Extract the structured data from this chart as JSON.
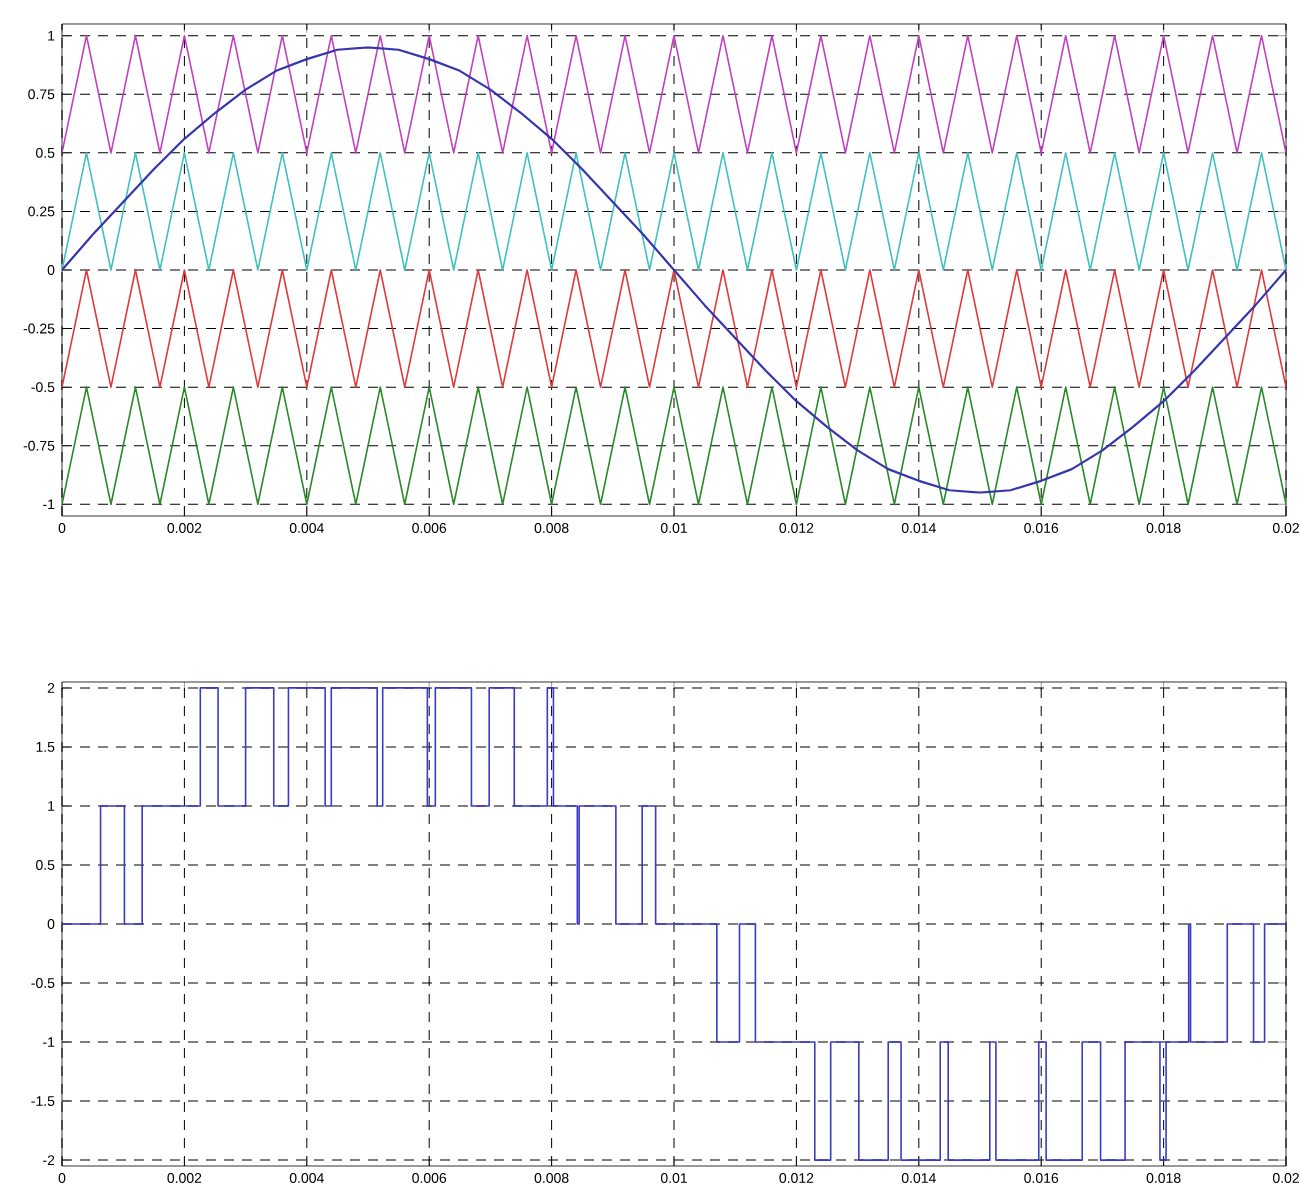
{
  "chart_data": [
    {
      "type": "line",
      "x": [
        0,
        0.0004,
        0.0008,
        0.0012,
        0.0016,
        0.002,
        0.0024,
        0.0028,
        0.0032,
        0.0036,
        0.004,
        0.0044,
        0.0048,
        0.0052,
        0.0056,
        0.006,
        0.0064,
        0.0068,
        0.0072,
        0.0076,
        0.008,
        0.0084,
        0.0088,
        0.0092,
        0.0096,
        0.01,
        0.0104,
        0.0108,
        0.0112,
        0.0116,
        0.012,
        0.0124,
        0.0128,
        0.0132,
        0.0136,
        0.014,
        0.0144,
        0.0148,
        0.0152,
        0.0156,
        0.016,
        0.0164,
        0.0168,
        0.0172,
        0.0176,
        0.018,
        0.0184,
        0.0188,
        0.0192,
        0.0196,
        0.02
      ],
      "series": [
        {
          "color": "#c040c0",
          "values": [
            0.5,
            1,
            0.5,
            1,
            0.5,
            1,
            0.5,
            1,
            0.5,
            1,
            0.5,
            1,
            0.5,
            1,
            0.5,
            1,
            0.5,
            1,
            0.5,
            1,
            0.5,
            1,
            0.5,
            1,
            0.5,
            1,
            0.5,
            1,
            0.5,
            1,
            0.5,
            1,
            0.5,
            1,
            0.5,
            1,
            0.5,
            1,
            0.5,
            1,
            0.5,
            1,
            0.5,
            1,
            0.5,
            1,
            0.5,
            1,
            0.5,
            1,
            0.5
          ]
        },
        {
          "color": "#40c0c0",
          "values": [
            0,
            0.5,
            0,
            0.5,
            0,
            0.5,
            0,
            0.5,
            0,
            0.5,
            0,
            0.5,
            0,
            0.5,
            0,
            0.5,
            0,
            0.5,
            0,
            0.5,
            0,
            0.5,
            0,
            0.5,
            0,
            0.5,
            0,
            0.5,
            0,
            0.5,
            0,
            0.5,
            0,
            0.5,
            0,
            0.5,
            0,
            0.5,
            0,
            0.5,
            0,
            0.5,
            0,
            0.5,
            0,
            0.5,
            0,
            0.5,
            0,
            0.5,
            0
          ]
        },
        {
          "color": "#e03a3a",
          "values": [
            -0.5,
            0,
            -0.5,
            0,
            -0.5,
            0,
            -0.5,
            0,
            -0.5,
            0,
            -0.5,
            0,
            -0.5,
            0,
            -0.5,
            0,
            -0.5,
            0,
            -0.5,
            0,
            -0.5,
            0,
            -0.5,
            0,
            -0.5,
            0,
            -0.5,
            0,
            -0.5,
            0,
            -0.5,
            0,
            -0.5,
            0,
            -0.5,
            0,
            -0.5,
            0,
            -0.5,
            0,
            -0.5,
            0,
            -0.5,
            0,
            -0.5,
            0,
            -0.5,
            0,
            -0.5,
            0,
            -0.5
          ]
        },
        {
          "color": "#2a8a2a",
          "values": [
            -1,
            -0.5,
            -1,
            -0.5,
            -1,
            -0.5,
            -1,
            -0.5,
            -1,
            -0.5,
            -1,
            -0.5,
            -1,
            -0.5,
            -1,
            -0.5,
            -1,
            -0.5,
            -1,
            -0.5,
            -1,
            -0.5,
            -1,
            -0.5,
            -1,
            -0.5,
            -1,
            -0.5,
            -1,
            -0.5,
            -1,
            -0.5,
            -1,
            -0.5,
            -1,
            -0.5,
            -1,
            -0.5,
            -1,
            -0.5,
            -1,
            -0.5,
            -1,
            -0.5,
            -1,
            -0.5,
            -1,
            -0.5,
            -1,
            -0.5,
            -1
          ]
        },
        {
          "color": "#3535b0",
          "x": [
            0,
            0.0005,
            0.001,
            0.0015,
            0.002,
            0.0025,
            0.003,
            0.0035,
            0.004,
            0.0045,
            0.005,
            0.0055,
            0.006,
            0.0065,
            0.007,
            0.0075,
            0.008,
            0.0085,
            0.009,
            0.0095,
            0.01,
            0.0105,
            0.011,
            0.0115,
            0.012,
            0.0125,
            0.013,
            0.0135,
            0.014,
            0.0145,
            0.015,
            0.0155,
            0.016,
            0.0165,
            0.017,
            0.0175,
            0.018,
            0.0185,
            0.019,
            0.0195,
            0.02
          ],
          "values": [
            0,
            0.15,
            0.29,
            0.43,
            0.56,
            0.67,
            0.77,
            0.85,
            0.9,
            0.94,
            0.95,
            0.94,
            0.9,
            0.85,
            0.77,
            0.67,
            0.56,
            0.43,
            0.29,
            0.15,
            0,
            -0.15,
            -0.29,
            -0.43,
            -0.56,
            -0.67,
            -0.77,
            -0.85,
            -0.9,
            -0.94,
            -0.95,
            -0.94,
            -0.9,
            -0.85,
            -0.77,
            -0.67,
            -0.56,
            -0.43,
            -0.29,
            -0.15,
            0
          ]
        }
      ],
      "xlim": [
        0,
        0.02
      ],
      "ylim": [
        -1.05,
        1.05
      ],
      "xticks": [
        0,
        0.002,
        0.004,
        0.006,
        0.008,
        0.01,
        0.012,
        0.014,
        0.016,
        0.018,
        0.02
      ],
      "yticks": [
        -1,
        -0.75,
        -0.5,
        -0.25,
        0,
        0.25,
        0.5,
        0.75,
        1
      ],
      "grid": true
    },
    {
      "type": "step",
      "series": [
        {
          "color": "#3a3ac8",
          "x": [
            0,
            0.00063,
            0.00102,
            0.00131,
            0.00226,
            0.00255,
            0.003,
            0.00346,
            0.0037,
            0.0043,
            0.0044,
            0.00515,
            0.00524,
            0.00597,
            0.0061,
            0.00669,
            0.00698,
            0.00739,
            0.00793,
            0.00803,
            0.00842,
            0.00845,
            0.00905,
            0.00948,
            0.0097,
            0.0107,
            0.01107,
            0.01133,
            0.0123,
            0.01256,
            0.01302,
            0.0135,
            0.01371,
            0.01435,
            0.01448,
            0.01516,
            0.01526,
            0.01596,
            0.01608,
            0.01667,
            0.01697,
            0.01737,
            0.01794,
            0.01804,
            0.01841,
            0.01844,
            0.01904,
            0.01947,
            0.01965,
            0.02
          ],
          "values": [
            0,
            1,
            0,
            1,
            2,
            1,
            2,
            1,
            2,
            1,
            2,
            1,
            2,
            1,
            2,
            1,
            2,
            1,
            2,
            1,
            0,
            1,
            0,
            1,
            0,
            -1,
            0,
            -1,
            -2,
            -1,
            -2,
            -1,
            -2,
            -1,
            -2,
            -1,
            -2,
            -1,
            -2,
            -1,
            -2,
            -1,
            -2,
            -1,
            0,
            -1,
            0,
            -1,
            0,
            0
          ]
        }
      ],
      "xlim": [
        0,
        0.02
      ],
      "ylim": [
        -2.05,
        2.05
      ],
      "xticks": [
        0,
        0.002,
        0.004,
        0.006,
        0.008,
        0.01,
        0.012,
        0.014,
        0.016,
        0.018,
        0.02
      ],
      "yticks": [
        -2,
        -1.5,
        -1,
        -0.5,
        0,
        0.5,
        1,
        1.5,
        2
      ],
      "grid": true
    }
  ]
}
